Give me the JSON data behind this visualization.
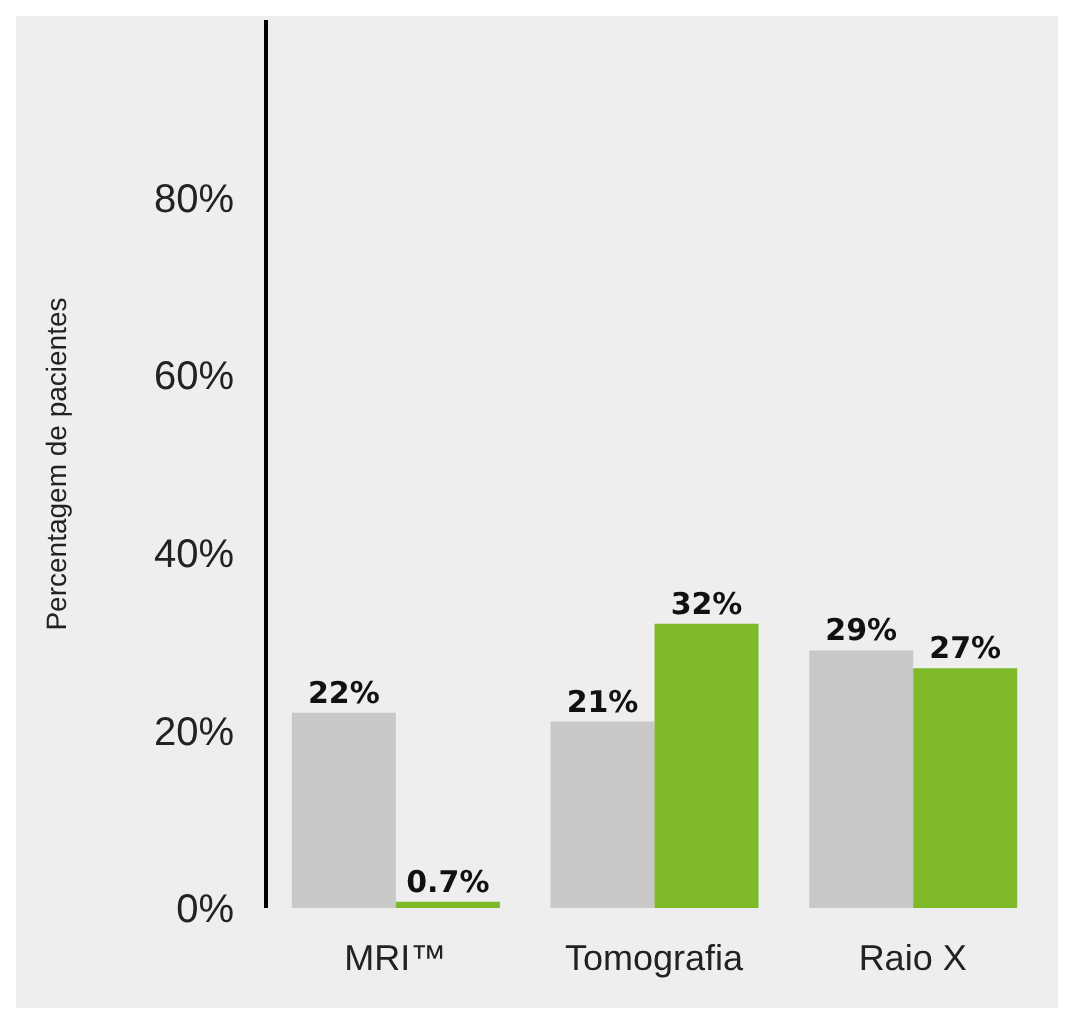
{
  "chart_data": {
    "type": "bar",
    "ylabel": "Percentagem de pacientes",
    "categories": [
      "MRI™",
      "Tomografia",
      "Raio X"
    ],
    "series": [
      {
        "color": "#c8c8c8",
        "values": [
          22,
          21,
          29
        ],
        "value_labels": [
          "22%",
          "21%",
          "29%"
        ]
      },
      {
        "color": "#7db928",
        "values": [
          0.7,
          32,
          27
        ],
        "value_labels": [
          "0.7%",
          "32%",
          "27%"
        ]
      }
    ],
    "ylim": [
      0,
      100
    ],
    "yticks": [
      {
        "value": 0,
        "label": "0%"
      },
      {
        "value": 20,
        "label": "20%"
      },
      {
        "value": 40,
        "label": "40%"
      },
      {
        "value": 60,
        "label": "60%"
      },
      {
        "value": 80,
        "label": "80%"
      }
    ],
    "grid": false,
    "legend": false
  }
}
